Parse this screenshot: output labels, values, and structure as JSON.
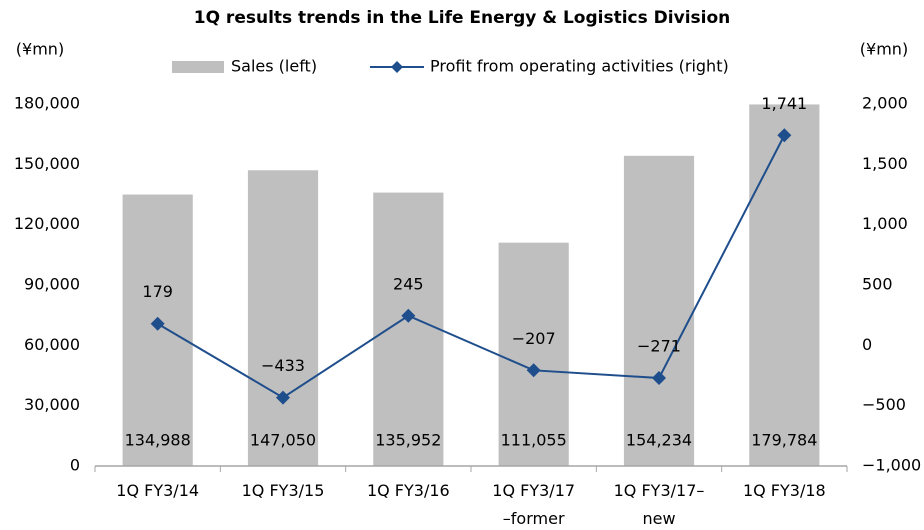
{
  "chart_data": {
    "type": "bar",
    "title": "1Q results trends in the Life Energy & Logistics Division",
    "ylabel": "(¥mn)",
    "y2label": "(¥mn)",
    "categories": [
      [
        "1Q FY3/14"
      ],
      [
        "1Q FY3/15"
      ],
      [
        "1Q FY3/16"
      ],
      [
        "1Q FY3/17",
        "–former"
      ],
      [
        "1Q FY3/17–",
        "new"
      ],
      [
        "1Q FY3/18"
      ]
    ],
    "series": [
      {
        "name": "Sales (left)",
        "type": "bar",
        "color": "#bfbfbf",
        "values": [
          134988,
          147050,
          135952,
          111055,
          154234,
          179784
        ],
        "value_labels": [
          "134,988",
          "147,050",
          "135,952",
          "111,055",
          "154,234",
          "179,784"
        ]
      },
      {
        "name": "Profit from operating activities (right)",
        "type": "line",
        "axis": "y2",
        "color": "#1f4e8c",
        "values": [
          179,
          -433,
          245,
          -207,
          -271,
          1741
        ],
        "value_labels": [
          "179",
          "−433",
          "245",
          "−207",
          "−271",
          "1,741"
        ]
      }
    ],
    "ylim": [
      0,
      180000
    ],
    "yticks": [
      0,
      {
        "value": 30000,
        "label": "30,000"
      },
      {
        "value": 60000,
        "label": "60,000"
      },
      {
        "value": 90000,
        "label": "90,000"
      },
      {
        "value": 120000,
        "label": "120,000"
      },
      {
        "value": 150000,
        "label": "150,000"
      },
      {
        "value": 180000,
        "label": "180,000"
      }
    ],
    "y2lim": [
      -1000,
      2000
    ],
    "y2ticks": [
      {
        "value": -1000,
        "label": "−1,000"
      },
      {
        "value": -500,
        "label": "−500"
      },
      0,
      500,
      {
        "value": 1000,
        "label": "1,000"
      },
      {
        "value": 1500,
        "label": "1,500"
      },
      {
        "value": 2000,
        "label": "2,000"
      }
    ],
    "grid": false,
    "legend": "top"
  }
}
